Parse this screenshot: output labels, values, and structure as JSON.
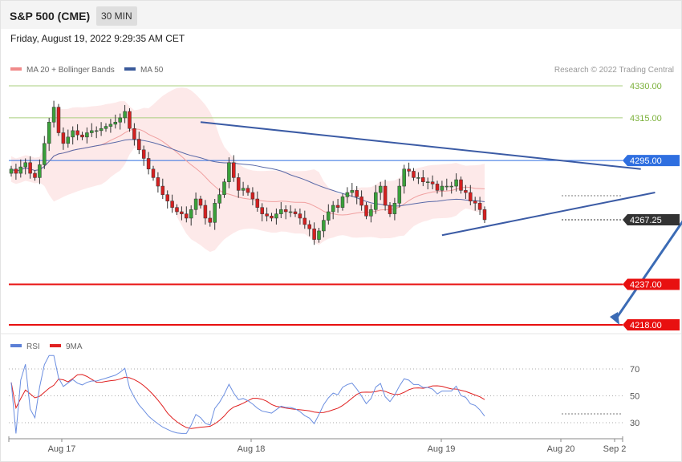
{
  "header": {
    "title": "S&P 500 (CME)",
    "timeframe": "30 MIN",
    "datetime": "Friday, August 19, 2022 9:29:35 AM CET"
  },
  "legend": {
    "items": [
      {
        "label": "MA 20 + Bollinger Bands",
        "color": "#f08a8a"
      },
      {
        "label": "MA 50",
        "color": "#3a5a9a"
      }
    ],
    "copyright": "Research © 2022 Trading Central"
  },
  "rsi_legend": {
    "items": [
      {
        "label": "RSI",
        "color": "#5b7fd6"
      },
      {
        "label": "9MA",
        "color": "#e02020"
      }
    ]
  },
  "chart_data": {
    "type": "candlestick",
    "price_axis": {
      "min": 4210,
      "max": 4340
    },
    "levels": [
      {
        "value": 4330,
        "label": "4330.00",
        "color": "#7bb13a",
        "style": "thin"
      },
      {
        "value": 4315,
        "label": "4315.00",
        "color": "#7bb13a",
        "style": "thin"
      },
      {
        "value": 4295,
        "label": "4295.00",
        "color": "#2f6fe0",
        "style": "pivot"
      },
      {
        "value": 4267.25,
        "label": "4267.25",
        "color": "#333333",
        "style": "last"
      },
      {
        "value": 4237,
        "label": "4237.00",
        "color": "#e81010",
        "style": "support"
      },
      {
        "value": 4218,
        "label": "4218.00",
        "color": "#e81010",
        "style": "support"
      }
    ],
    "x_labels": [
      "Aug 17",
      "Aug 18",
      "Aug 19",
      "Aug 20",
      "Sep 2"
    ],
    "closes": [
      4291,
      4289,
      4292,
      4294,
      4289,
      4287,
      4293,
      4303,
      4313,
      4320,
      4308,
      4303,
      4306,
      4309,
      4307,
      4306,
      4308,
      4309,
      4309,
      4310,
      4311,
      4312,
      4313,
      4315,
      4318,
      4310,
      4305,
      4300,
      4296,
      4291,
      4287,
      4283,
      4279,
      4276,
      4273,
      4271,
      4270,
      4268,
      4272,
      4277,
      4274,
      4268,
      4266,
      4275,
      4279,
      4285,
      4294,
      4287,
      4281,
      4282,
      4280,
      4277,
      4273,
      4270,
      4269,
      4268,
      4270,
      4272,
      4271,
      4271,
      4270,
      4268,
      4265,
      4263,
      4258,
      4262,
      4267,
      4271,
      4274,
      4273,
      4278,
      4280,
      4281,
      4278,
      4274,
      4269,
      4272,
      4280,
      4283,
      4274,
      4270,
      4275,
      4283,
      4291,
      4290,
      4287,
      4287,
      4285,
      4285,
      4284,
      4281,
      4283,
      4283,
      4283,
      4286,
      4281,
      4280,
      4276,
      4275,
      4272,
      4267.25
    ],
    "rsi": {
      "levels": [
        30,
        50,
        70
      ]
    },
    "trendlines": [
      {
        "from": [
          40,
          4313
        ],
        "to": [
          133,
          4291
        ]
      },
      {
        "from": [
          91,
          4260
        ],
        "to": [
          136,
          4280
        ]
      }
    ],
    "forecast_arrow": {
      "from": [
        142,
        4267
      ],
      "to": [
        155,
        4218
      ]
    }
  }
}
